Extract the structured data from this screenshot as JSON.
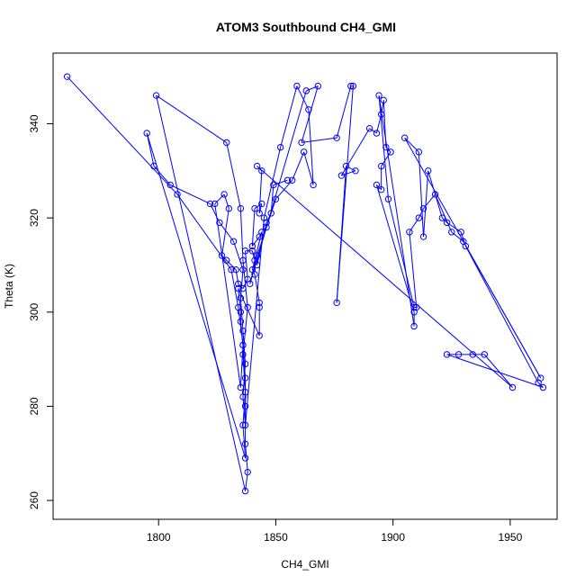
{
  "chart_data": {
    "type": "line",
    "title": "ATOM3 Southbound CH4_GMI",
    "xlabel": "CH4_GMI",
    "ylabel": "Theta (K)",
    "xlim": [
      1755,
      1970
    ],
    "ylim": [
      256,
      355
    ],
    "x_ticks": [
      1800,
      1850,
      1900,
      1950
    ],
    "y_ticks": [
      260,
      280,
      300,
      320,
      340
    ],
    "grid": false,
    "legend": "none",
    "marker": "open-circle",
    "line_color": "#0000ff",
    "series": [
      {
        "points": [
          [
            1761,
            350
          ],
          [
            1808,
            325
          ],
          [
            1831,
            309
          ],
          [
            1834,
            301
          ],
          [
            1836,
            293
          ],
          [
            1837,
            286
          ],
          [
            1837,
            280
          ],
          [
            1837,
            272
          ],
          [
            1838,
            266
          ],
          [
            1837,
            262
          ],
          [
            1799,
            346
          ],
          [
            1829,
            336
          ],
          [
            1835,
            322
          ],
          [
            1836,
            311
          ],
          [
            1838,
            301
          ],
          [
            1836,
            291
          ],
          [
            1837,
            283
          ],
          [
            1836,
            276
          ],
          [
            1837,
            269
          ],
          [
            1795,
            338
          ],
          [
            1798,
            331
          ],
          [
            1805,
            327
          ],
          [
            1822,
            323
          ],
          [
            1826,
            319
          ],
          [
            1832,
            315
          ],
          [
            1836,
            309
          ],
          [
            1835,
            303
          ],
          [
            1836,
            296
          ],
          [
            1837,
            289
          ],
          [
            1836,
            282
          ],
          [
            1837,
            276
          ],
          [
            1845,
            320
          ],
          [
            1852,
            335
          ],
          [
            1859,
            348
          ],
          [
            1864,
            343
          ],
          [
            1866,
            327
          ],
          [
            1862,
            334
          ],
          [
            1857,
            328
          ],
          [
            1850,
            324
          ],
          [
            1846,
            318
          ],
          [
            1842,
            312
          ],
          [
            1839,
            306
          ],
          [
            1863,
            347
          ],
          [
            1868,
            348
          ],
          [
            1861,
            336
          ],
          [
            1876,
            337
          ],
          [
            1882,
            348
          ],
          [
            1883,
            348
          ],
          [
            1876,
            302
          ],
          [
            1880,
            331
          ],
          [
            1884,
            330
          ],
          [
            1878,
            329
          ],
          [
            1890,
            339
          ],
          [
            1893,
            338
          ],
          [
            1895,
            342
          ],
          [
            1896,
            345
          ],
          [
            1897,
            335
          ],
          [
            1899,
            334
          ],
          [
            1895,
            331
          ],
          [
            1895,
            326
          ],
          [
            1893,
            327
          ],
          [
            1909,
            300
          ],
          [
            1909,
            297
          ],
          [
            1894,
            346
          ],
          [
            1898,
            324
          ],
          [
            1909,
            301
          ],
          [
            1910,
            301
          ],
          [
            1907,
            317
          ],
          [
            1911,
            320
          ],
          [
            1913,
            322
          ],
          [
            1918,
            325
          ],
          [
            1925,
            317
          ],
          [
            1930,
            315
          ],
          [
            1963,
            286
          ],
          [
            1905,
            337
          ],
          [
            1911,
            334
          ],
          [
            1913,
            316
          ],
          [
            1915,
            330
          ],
          [
            1921,
            320
          ],
          [
            1923,
            319
          ],
          [
            1929,
            317
          ],
          [
            1931,
            314
          ],
          [
            1962,
            285
          ],
          [
            1964,
            284
          ],
          [
            1923,
            291
          ],
          [
            1928,
            291
          ],
          [
            1934,
            291
          ],
          [
            1939,
            291
          ],
          [
            1951,
            284
          ],
          [
            1842,
            331
          ],
          [
            1844,
            330
          ],
          [
            1843,
            321
          ],
          [
            1844,
            323
          ],
          [
            1841,
            322
          ],
          [
            1840,
            314
          ],
          [
            1843,
            316
          ],
          [
            1844,
            317
          ],
          [
            1840,
            309
          ],
          [
            1841,
            308
          ],
          [
            1843,
            302
          ],
          [
            1843,
            301
          ],
          [
            1843,
            295
          ],
          [
            1834,
            305
          ],
          [
            1835,
            300
          ],
          [
            1835,
            298
          ],
          [
            1836,
            293
          ],
          [
            1835,
            284
          ],
          [
            1824,
            323
          ],
          [
            1828,
            325
          ],
          [
            1830,
            322
          ],
          [
            1827,
            312
          ],
          [
            1829,
            311
          ],
          [
            1833,
            309
          ],
          [
            1834,
            306
          ],
          [
            1836,
            305
          ],
          [
            1838,
            307
          ],
          [
            1837,
            313
          ],
          [
            1840,
            313
          ],
          [
            1841,
            311
          ],
          [
            1842,
            310
          ],
          [
            1846,
            319
          ],
          [
            1848,
            321
          ],
          [
            1849,
            327
          ],
          [
            1855,
            328
          ]
        ]
      }
    ]
  }
}
